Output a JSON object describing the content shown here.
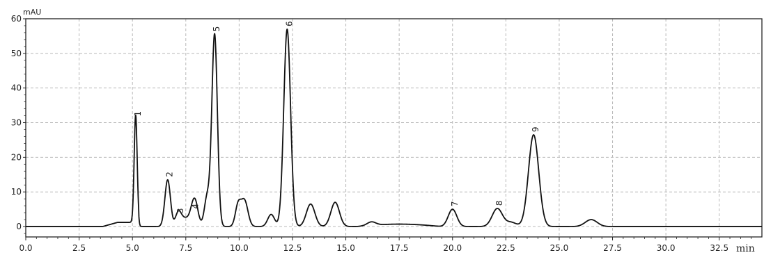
{
  "chart_data": {
    "type": "line",
    "title": "",
    "ylabel": "mAU",
    "xlabel": "min",
    "xlim": [
      0,
      34.5
    ],
    "ylim": [
      -3,
      60
    ],
    "x_ticks": [
      "0.0",
      "2.5",
      "5.0",
      "7.5",
      "10.0",
      "12.5",
      "15.0",
      "17.5",
      "20.0",
      "22.5",
      "25.0",
      "27.5",
      "30.0",
      "32.5"
    ],
    "y_ticks": [
      "0",
      "10",
      "20",
      "30",
      "40",
      "50",
      "60"
    ],
    "grid": "dashed",
    "baseline": 0,
    "colors": {
      "trace": "#111111",
      "axes": "#222222",
      "grid": "#b8b8b8"
    },
    "peaks": [
      {
        "label": "1",
        "x": 5.15,
        "y": 31.0
      },
      {
        "label": "2",
        "x": 6.65,
        "y": 13.5
      },
      {
        "label": "3",
        "x": 7.15,
        "y": 3.0
      },
      {
        "label": "4",
        "x": 7.85,
        "y": 4.3
      },
      {
        "label": "5",
        "x": 8.85,
        "y": 55.5
      },
      {
        "label": "6",
        "x": 12.25,
        "y": 57.0
      },
      {
        "label": "7",
        "x": 20.0,
        "y": 5.0
      },
      {
        "label": "8",
        "x": 22.1,
        "y": 5.2
      },
      {
        "label": "9",
        "x": 23.8,
        "y": 26.5
      }
    ],
    "minor_peaks": [
      {
        "x": 8.0,
        "y": 4.0
      },
      {
        "x": 8.5,
        "y": 8.5
      },
      {
        "x": 9.95,
        "y": 6.0
      },
      {
        "x": 10.25,
        "y": 7.5
      },
      {
        "x": 11.5,
        "y": 3.5
      },
      {
        "x": 13.35,
        "y": 6.5
      },
      {
        "x": 14.5,
        "y": 7.0
      },
      {
        "x": 16.2,
        "y": 1.0
      },
      {
        "x": 22.75,
        "y": 1.2
      },
      {
        "x": 26.5,
        "y": 2.0
      }
    ]
  }
}
